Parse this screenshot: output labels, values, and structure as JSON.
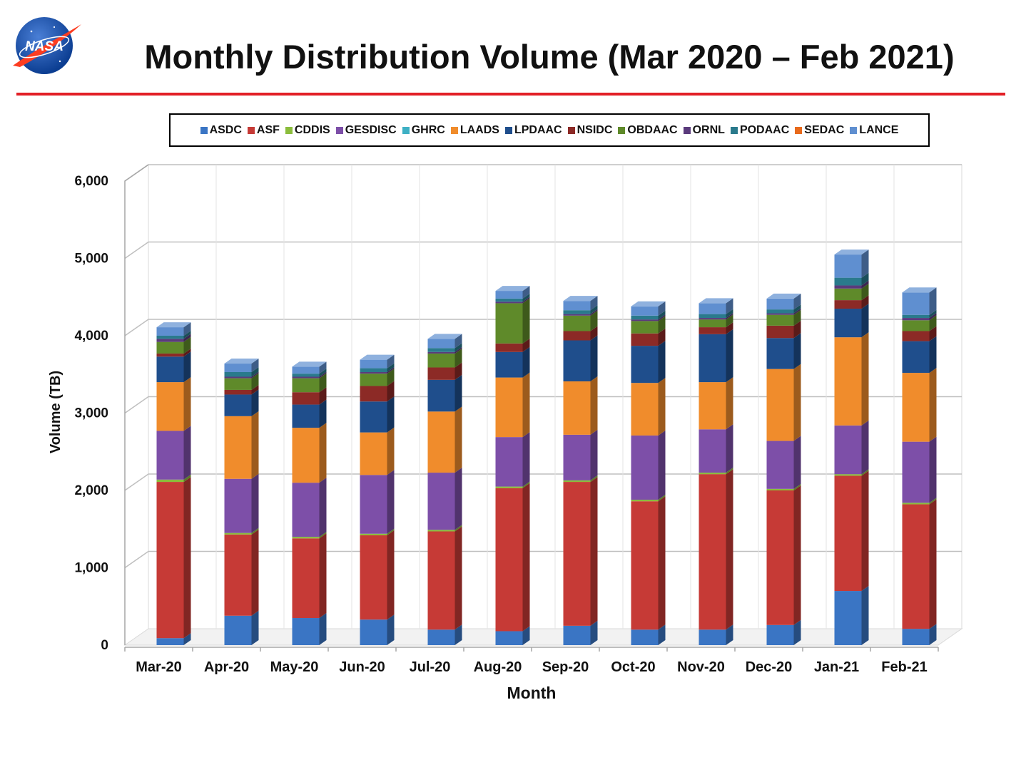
{
  "page": {
    "title": "Monthly Distribution Volume (Mar 2020 – Feb 2021)",
    "logo_text": "NASA",
    "rule_color": "#e21f26"
  },
  "chart_data": {
    "type": "bar",
    "stacked": true,
    "three_d": true,
    "title": "",
    "xlabel": "Month",
    "ylabel": "Volume (TB)",
    "ylim": [
      0,
      6000
    ],
    "yticks": [
      0,
      1000,
      2000,
      3000,
      4000,
      5000,
      6000
    ],
    "ytick_labels": [
      "0",
      "1,000",
      "2,000",
      "3,000",
      "4,000",
      "5,000",
      "6,000"
    ],
    "grid": true,
    "legend_position": "top",
    "categories": [
      "Mar-20",
      "Apr-20",
      "May-20",
      "Jun-20",
      "Jul-20",
      "Aug-20",
      "Sep-20",
      "Oct-20",
      "Nov-20",
      "Dec-20",
      "Jan-21",
      "Feb-21"
    ],
    "series": [
      {
        "name": "ASDC",
        "color": "#3a75c4",
        "values": [
          90,
          380,
          350,
          330,
          200,
          180,
          250,
          200,
          200,
          260,
          700,
          210
        ]
      },
      {
        "name": "ASF",
        "color": "#c63a36",
        "values": [
          2020,
          1050,
          1030,
          1090,
          1270,
          1850,
          1860,
          1660,
          2010,
          1740,
          1490,
          1610
        ]
      },
      {
        "name": "CDDIS",
        "color": "#8bbd3c",
        "values": [
          30,
          20,
          20,
          20,
          20,
          20,
          20,
          20,
          20,
          20,
          20,
          20
        ]
      },
      {
        "name": "GESDISC",
        "color": "#7d4fa8",
        "values": [
          630,
          700,
          700,
          760,
          740,
          640,
          590,
          830,
          560,
          620,
          630,
          790
        ]
      },
      {
        "name": "GHRC",
        "color": "#3eb0c4",
        "values": [
          0,
          0,
          0,
          0,
          0,
          0,
          0,
          0,
          0,
          0,
          0,
          0
        ]
      },
      {
        "name": "LAADS",
        "color": "#f08c2c",
        "values": [
          630,
          810,
          710,
          550,
          790,
          770,
          690,
          680,
          610,
          930,
          1140,
          890
        ]
      },
      {
        "name": "LPDAAC",
        "color": "#1f4e8c",
        "values": [
          330,
          280,
          300,
          400,
          410,
          330,
          530,
          480,
          620,
          400,
          370,
          410
        ]
      },
      {
        "name": "NSIDC",
        "color": "#8c2a26",
        "values": [
          40,
          60,
          160,
          200,
          160,
          110,
          120,
          160,
          90,
          160,
          110,
          130
        ]
      },
      {
        "name": "OBDAAC",
        "color": "#5f8a2a",
        "values": [
          150,
          150,
          180,
          160,
          180,
          520,
          200,
          160,
          100,
          140,
          150,
          140
        ]
      },
      {
        "name": "ORNL",
        "color": "#5a3a7c",
        "values": [
          40,
          20,
          20,
          20,
          20,
          20,
          20,
          20,
          20,
          20,
          40,
          30
        ]
      },
      {
        "name": "PODAAC",
        "color": "#2a7a8c",
        "values": [
          40,
          60,
          40,
          50,
          50,
          40,
          50,
          50,
          50,
          50,
          100,
          40
        ]
      },
      {
        "name": "SEDAC",
        "color": "#e86a1c",
        "values": [
          0,
          0,
          0,
          0,
          0,
          0,
          0,
          0,
          0,
          0,
          0,
          0
        ]
      },
      {
        "name": "LANCE",
        "color": "#5f8fd0",
        "values": [
          110,
          110,
          90,
          110,
          120,
          100,
          120,
          120,
          140,
          140,
          300,
          290
        ]
      }
    ]
  }
}
